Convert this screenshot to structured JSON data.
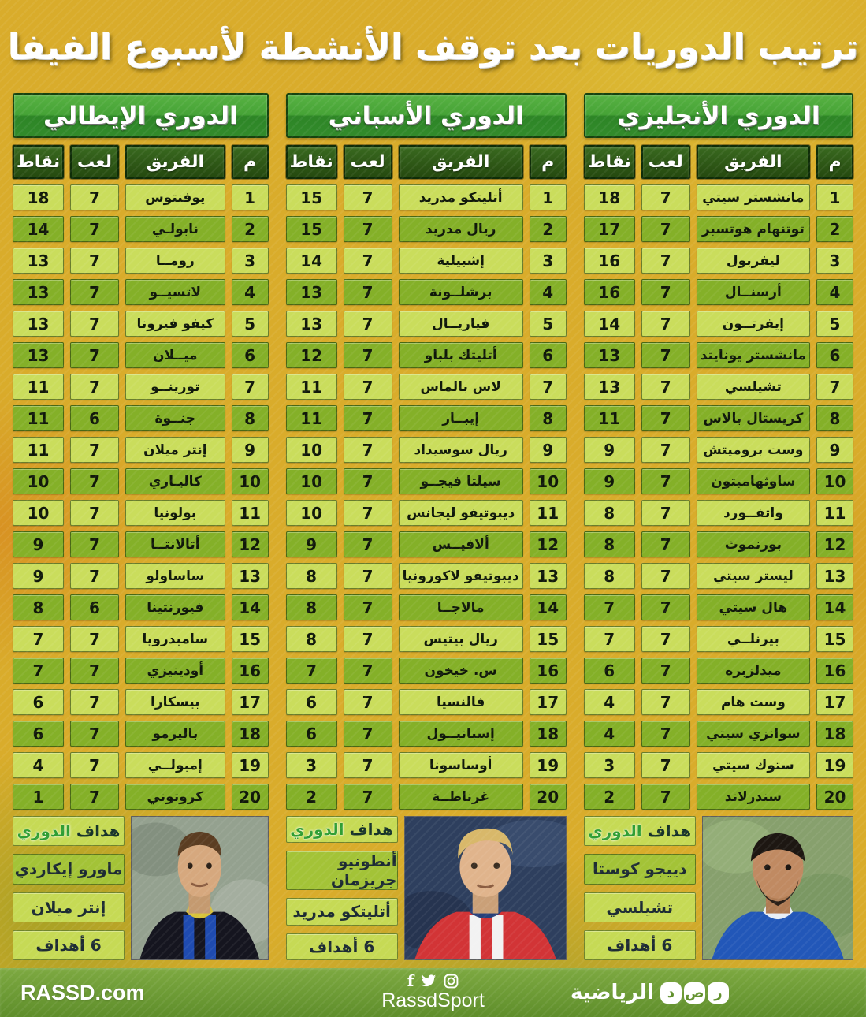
{
  "title": "ترتيب الدوريات بعد توقف الأنشطة لأسبوع الفيفا",
  "chart_data": [
    {
      "type": "table",
      "title": "الدوري الأنجليزي",
      "columns": [
        "م",
        "الفريق",
        "لعب",
        "نقاط"
      ],
      "rows": [
        [
          1,
          "مانشستر سيتي",
          7,
          18
        ],
        [
          2,
          "توتنهام هوتسبر",
          7,
          17
        ],
        [
          3,
          "ليفربول",
          7,
          16
        ],
        [
          4,
          "أرسنــال",
          7,
          16
        ],
        [
          5,
          "إيفرتــون",
          7,
          14
        ],
        [
          6,
          "مانشستر يونايتد",
          7,
          13
        ],
        [
          7,
          "تشيلسي",
          7,
          13
        ],
        [
          8,
          "كريستال بالاس",
          7,
          11
        ],
        [
          9,
          "وست بروميتش",
          7,
          9
        ],
        [
          10,
          "ساوثهامبتون",
          7,
          9
        ],
        [
          11,
          "واتفــورد",
          7,
          8
        ],
        [
          12,
          "بورنموث",
          7,
          8
        ],
        [
          13,
          "ليستر سيتي",
          7,
          8
        ],
        [
          14,
          "هال سيتي",
          7,
          7
        ],
        [
          15,
          "بيرنلــي",
          7,
          7
        ],
        [
          16,
          "ميدلزبره",
          7,
          6
        ],
        [
          17,
          "وست هام",
          7,
          4
        ],
        [
          18,
          "سوانزي سيتي",
          7,
          4
        ],
        [
          19,
          "ستوك سيتي",
          7,
          3
        ],
        [
          20,
          "سندرلاند",
          7,
          2
        ]
      ],
      "scorer": {
        "label_word1": "هداف",
        "label_word2": "الدوري",
        "name": "دييجو كوستا",
        "club": "تشيلسي",
        "goals": "6 أهداف"
      }
    },
    {
      "type": "table",
      "title": "الدوري الأسباني",
      "columns": [
        "م",
        "الفريق",
        "لعب",
        "نقاط"
      ],
      "rows": [
        [
          1,
          "أتليتكو مدريد",
          7,
          15
        ],
        [
          2,
          "ريال مدريد",
          7,
          15
        ],
        [
          3,
          "إشبيلية",
          7,
          14
        ],
        [
          4,
          "برشلــونة",
          7,
          13
        ],
        [
          5,
          "فياريــال",
          7,
          13
        ],
        [
          6,
          "أتليتك بلباو",
          7,
          12
        ],
        [
          7,
          "لاس بالماس",
          7,
          11
        ],
        [
          8,
          "إيبــار",
          7,
          11
        ],
        [
          9,
          "ريال سوسيداد",
          7,
          10
        ],
        [
          10,
          "سيلتا فيجــو",
          7,
          10
        ],
        [
          11,
          "ديبوتيفو ليجانس",
          7,
          10
        ],
        [
          12,
          "ألافيــس",
          7,
          9
        ],
        [
          13,
          "ديبوتيفو لاكورونيا",
          7,
          8
        ],
        [
          14,
          "مالاجــا",
          7,
          8
        ],
        [
          15,
          "ريال بيتيس",
          7,
          8
        ],
        [
          16,
          "س. خيخون",
          7,
          7
        ],
        [
          17,
          "فالنسيا",
          7,
          6
        ],
        [
          18,
          "إسبانيــول",
          7,
          6
        ],
        [
          19,
          "أوساسونا",
          7,
          3
        ],
        [
          20,
          "غرناطــة",
          7,
          2
        ]
      ],
      "scorer": {
        "label_word1": "هداف",
        "label_word2": "الدوري",
        "name": "أنطونيو جريزمان",
        "club": "أتليتكو مدريد",
        "goals": "6 أهداف"
      }
    },
    {
      "type": "table",
      "title": "الدوري الإيطالي",
      "columns": [
        "م",
        "الفريق",
        "لعب",
        "نقاط"
      ],
      "rows": [
        [
          1,
          "يوفنتوس",
          7,
          18
        ],
        [
          2,
          "نابولـي",
          7,
          14
        ],
        [
          3,
          "رومــا",
          7,
          13
        ],
        [
          4,
          "لاتسيــو",
          7,
          13
        ],
        [
          5,
          "كيفو فيرونا",
          7,
          13
        ],
        [
          6,
          "ميــلان",
          7,
          13
        ],
        [
          7,
          "تورينــو",
          7,
          11
        ],
        [
          8,
          "جنــوة",
          6,
          11
        ],
        [
          9,
          "إنتر ميلان",
          7,
          11
        ],
        [
          10,
          "كاليـاري",
          7,
          10
        ],
        [
          11,
          "بولونيا",
          7,
          10
        ],
        [
          12,
          "أتالانتــا",
          7,
          9
        ],
        [
          13,
          "ساساولو",
          7,
          9
        ],
        [
          14,
          "فيورنتينا",
          6,
          8
        ],
        [
          15,
          "سامبدرويا",
          7,
          7
        ],
        [
          16,
          "أودينيزي",
          7,
          7
        ],
        [
          17,
          "بيسكارا",
          7,
          6
        ],
        [
          18,
          "باليرمو",
          7,
          6
        ],
        [
          19,
          "إمبولــي",
          7,
          4
        ],
        [
          20,
          "كروتوني",
          7,
          1
        ]
      ],
      "scorer": {
        "label_word1": "هداف",
        "label_word2": "الدوري",
        "name": "ماورو إيكاردي",
        "club": "إنتر ميلان",
        "goals": "6 أهداف"
      }
    }
  ],
  "footer": {
    "site": "RASSD.com",
    "social_icons": [
      "facebook-icon",
      "twitter-icon",
      "instagram-icon"
    ],
    "social_handle": "RassdSport",
    "brand_letters": [
      "ر",
      "ص",
      "د"
    ],
    "brand_name": "الرياضية"
  },
  "colors": {
    "background": "#d9ac2b",
    "row_light": "#cadd5c",
    "row_dark": "#84b028",
    "header_green": "#25490f",
    "bar_green_top": "#58b243",
    "bar_green_bottom": "#2d8526",
    "footer_green": "#6f9e35"
  }
}
